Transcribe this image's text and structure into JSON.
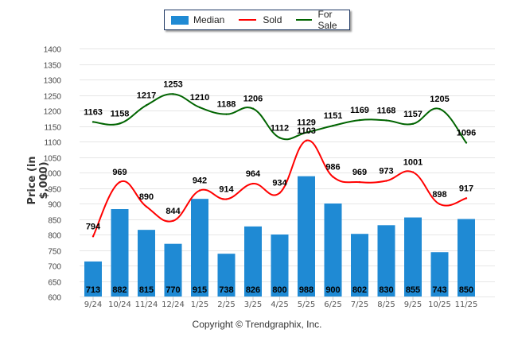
{
  "chart_data": {
    "type": "bar",
    "title": "",
    "xlabel": "",
    "ylabel": "Price (in $,000)",
    "ylim": [
      600,
      1400
    ],
    "yticks": [
      600,
      650,
      700,
      750,
      800,
      850,
      900,
      950,
      1000,
      1050,
      1100,
      1150,
      1200,
      1250,
      1300,
      1350,
      1400
    ],
    "grid": true,
    "legend_placement": "top-center",
    "categories": [
      "9/24",
      "10/24",
      "11/24",
      "12/24",
      "1/25",
      "2/25",
      "3/25",
      "4/25",
      "5/25",
      "6/25",
      "7/25",
      "8/25",
      "9/25",
      "10/25",
      "11/25"
    ],
    "series": [
      {
        "name": "Median",
        "type": "bar",
        "color": "#1f8ad4",
        "values": [
          713,
          882,
          815,
          770,
          915,
          738,
          826,
          800,
          988,
          900,
          802,
          830,
          855,
          743,
          850
        ]
      },
      {
        "name": "Sold",
        "type": "line",
        "color": "#ff0000",
        "values": [
          794,
          969,
          890,
          844,
          942,
          914,
          964,
          934,
          1103,
          986,
          969,
          973,
          1001,
          898,
          917
        ]
      },
      {
        "name": "For Sale",
        "type": "line",
        "color": "#006400",
        "values": [
          1163,
          1158,
          1217,
          1253,
          1210,
          1188,
          1206,
          1112,
          1129,
          1151,
          1169,
          1168,
          1157,
          1205,
          1096
        ]
      }
    ]
  },
  "legend": {
    "items": [
      {
        "label": "Median"
      },
      {
        "label": "Sold"
      },
      {
        "label": "For Sale"
      }
    ]
  },
  "footer": {
    "copyright": "Copyright © Trendgraphix, Inc."
  }
}
